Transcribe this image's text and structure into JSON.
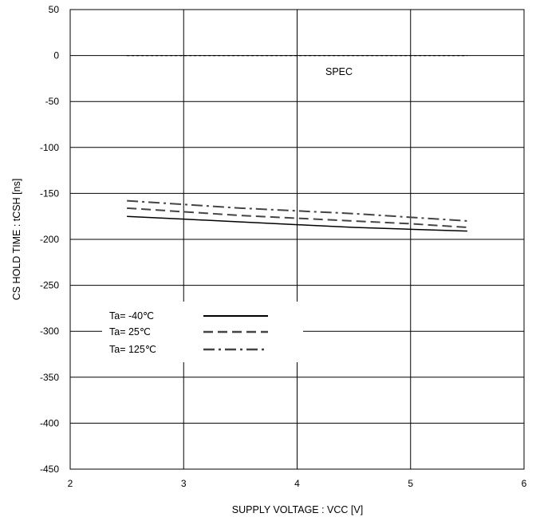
{
  "chart_data": {
    "type": "line",
    "title": "",
    "xlabel": "SUPPLY VOLTAGE : VCC [V]",
    "ylabel": "CS HOLD TIME : tCSH [ns]",
    "xlim": [
      2,
      6
    ],
    "ylim": [
      -450,
      50
    ],
    "x_ticks": [
      "2",
      "3",
      "4",
      "5",
      "6"
    ],
    "y_ticks": [
      "50",
      "0",
      "-50",
      "-100",
      "-150",
      "-200",
      "-250",
      "-300",
      "-350",
      "-400",
      "-450"
    ],
    "grid": true,
    "legend_position": "lower-left",
    "series": [
      {
        "name": "Ta= -40℃",
        "style": "solid",
        "color": "#000000",
        "x": [
          2.5,
          3.0,
          3.5,
          4.0,
          4.5,
          5.0,
          5.5
        ],
        "y": [
          -175,
          -178,
          -181,
          -184,
          -187,
          -189,
          -191
        ]
      },
      {
        "name": "Ta=  25℃",
        "style": "dashed",
        "color": "#444444",
        "x": [
          2.5,
          3.0,
          3.5,
          4.0,
          4.5,
          5.0,
          5.5
        ],
        "y": [
          -166,
          -170,
          -174,
          -177,
          -180,
          -183,
          -187
        ]
      },
      {
        "name": "Ta= 125℃",
        "style": "dashdot",
        "color": "#444444",
        "x": [
          2.5,
          3.0,
          3.5,
          4.0,
          4.5,
          5.0,
          5.5
        ],
        "y": [
          -158,
          -162,
          -166,
          -169,
          -172,
          -176,
          -180
        ]
      }
    ],
    "spec": {
      "label": "SPEC",
      "value": 0,
      "x": [
        2.5,
        5.5
      ]
    }
  }
}
